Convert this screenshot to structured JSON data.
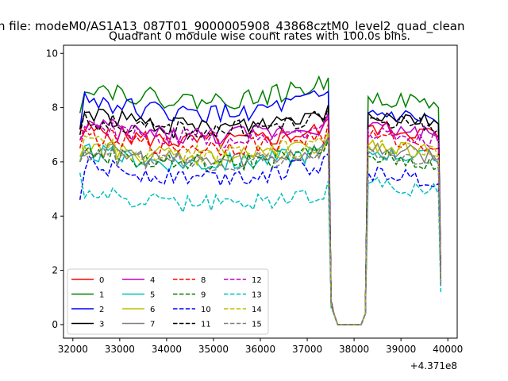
{
  "chart_data": {
    "type": "line",
    "suptitle": "n file: modeM0/AS1A13_087T01_9000005908_43868cztM0_level2_quad_clean",
    "title": "Quadrant 0 module wise count rates with 100.0s bins.",
    "xlabel": "",
    "ylabel": "",
    "x_offset_label": "+4.371e8",
    "xlim": [
      31800,
      40200
    ],
    "ylim": [
      -0.5,
      10.3
    ],
    "xticks": [
      32000,
      33000,
      34000,
      35000,
      36000,
      37000,
      38000,
      39000,
      40000
    ],
    "xtick_labels": [
      "32000",
      "33000",
      "34000",
      "35000",
      "36000",
      "37000",
      "38000",
      "39000",
      "40000"
    ],
    "yticks": [
      0,
      2,
      4,
      6,
      8,
      10
    ],
    "ytick_labels": [
      "0",
      "2",
      "4",
      "6",
      "8",
      "10"
    ],
    "grid": false,
    "legend_position": "lower-left",
    "legend_columns": 4,
    "segments": [
      {
        "start": 32150,
        "end": 37450
      },
      {
        "start": 37650,
        "end": 38150
      },
      {
        "start": 38300,
        "end": 39850
      }
    ],
    "bin_seconds": 100,
    "series": [
      {
        "name": "0",
        "color": "#ff0000",
        "dash": "solid",
        "level": 7.1,
        "post": 7.3,
        "start": 7.2,
        "end": 1.7
      },
      {
        "name": "1",
        "color": "#008000",
        "dash": "solid",
        "level": 8.6,
        "post": 8.4,
        "start": 7.8,
        "end": 1.7
      },
      {
        "name": "2",
        "color": "#0000ff",
        "dash": "solid",
        "level": 8.1,
        "post": 7.8,
        "start": 7.2,
        "end": 1.6
      },
      {
        "name": "3",
        "color": "#000000",
        "dash": "solid",
        "level": 7.6,
        "post": 7.8,
        "start": 7.2,
        "end": 1.7
      },
      {
        "name": "4",
        "color": "#bf00bf",
        "dash": "solid",
        "level": 7.3,
        "post": 7.3,
        "start": 6.8,
        "end": 1.6
      },
      {
        "name": "5",
        "color": "#00bfbf",
        "dash": "solid",
        "level": 6.3,
        "post": 6.4,
        "start": 6.0,
        "end": 1.5
      },
      {
        "name": "6",
        "color": "#bfbf00",
        "dash": "solid",
        "level": 6.5,
        "post": 6.6,
        "start": 6.2,
        "end": 1.5
      },
      {
        "name": "7",
        "color": "#808080",
        "dash": "solid",
        "level": 6.4,
        "post": 6.5,
        "start": 6.2,
        "end": 1.5
      },
      {
        "name": "8",
        "color": "#ff0000",
        "dash": "dashed",
        "level": 6.9,
        "post": 6.9,
        "start": 6.5,
        "end": 1.6
      },
      {
        "name": "9",
        "color": "#008000",
        "dash": "dashed",
        "level": 6.3,
        "post": 6.2,
        "start": 6.0,
        "end": 1.5
      },
      {
        "name": "10",
        "color": "#0000ff",
        "dash": "dashed",
        "level": 5.8,
        "post": 5.6,
        "start": 4.6,
        "end": 1.4
      },
      {
        "name": "11",
        "color": "#000000",
        "dash": "dashed",
        "level": 7.5,
        "post": 7.6,
        "start": 7.0,
        "end": 1.7
      },
      {
        "name": "12",
        "color": "#bf00bf",
        "dash": "dashed",
        "level": 7.2,
        "post": 7.1,
        "start": 6.8,
        "end": 1.6
      },
      {
        "name": "13",
        "color": "#00bfbf",
        "dash": "dashed",
        "level": 4.8,
        "post": 5.2,
        "start": 5.6,
        "end": 1.2
      },
      {
        "name": "14",
        "color": "#bfbf00",
        "dash": "dashed",
        "level": 6.6,
        "post": 6.6,
        "start": 6.0,
        "end": 1.5
      },
      {
        "name": "15",
        "color": "#808080",
        "dash": "dashed",
        "level": 6.3,
        "post": 6.3,
        "start": 6.0,
        "end": 1.5
      }
    ]
  }
}
